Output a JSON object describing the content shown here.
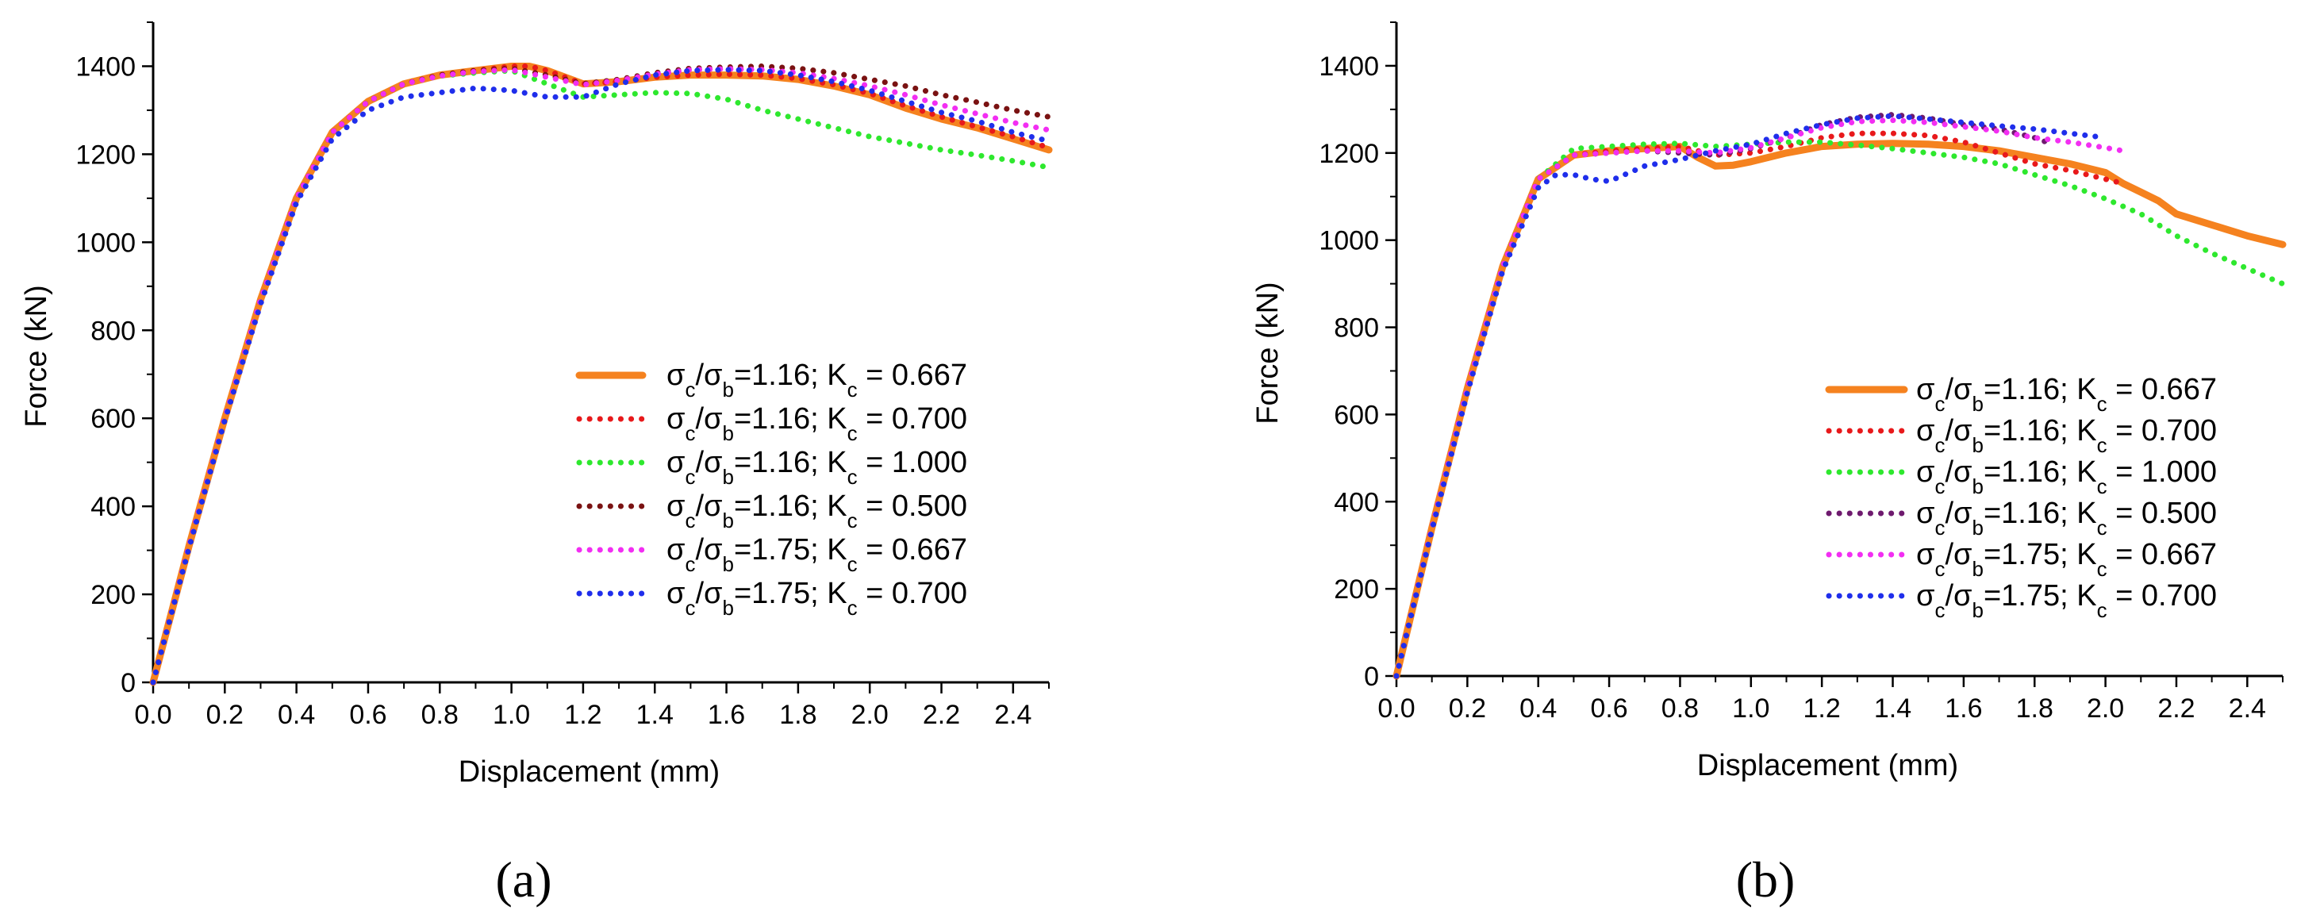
{
  "chart_data": [
    {
      "type": "line",
      "panel_label": "(a)",
      "xlabel": "Displacement (mm)",
      "ylabel": "Force (kN)",
      "xlim": [
        0,
        2.5
      ],
      "ylim": [
        0,
        1500
      ],
      "xticks": [
        "0.0",
        "0.2",
        "0.4",
        "0.6",
        "0.8",
        "1.0",
        "1.2",
        "1.4",
        "1.6",
        "1.8",
        "2.0",
        "2.2",
        "2.4"
      ],
      "yticks": [
        "0",
        "200",
        "400",
        "600",
        "800",
        "1000",
        "1200",
        "1400"
      ],
      "legend_position": "lower-right",
      "series": [
        {
          "name": "σc/σb=1.16; Kc = 0.667",
          "ratio": "1.16",
          "k": "0.667",
          "color": "#F5821F",
          "style": "solid",
          "x": [
            0,
            0.1,
            0.2,
            0.3,
            0.4,
            0.5,
            0.6,
            0.7,
            0.8,
            0.9,
            1.0,
            1.05,
            1.1,
            1.2,
            1.3,
            1.4,
            1.5,
            1.6,
            1.7,
            1.8,
            1.9,
            2.0,
            2.1,
            2.2,
            2.3,
            2.4,
            2.5
          ],
          "y": [
            0,
            310,
            600,
            870,
            1100,
            1250,
            1320,
            1360,
            1380,
            1390,
            1400,
            1400,
            1390,
            1360,
            1365,
            1375,
            1380,
            1380,
            1378,
            1370,
            1355,
            1335,
            1305,
            1280,
            1260,
            1235,
            1210
          ]
        },
        {
          "name": "σc/σb=1.16; Kc = 0.700",
          "ratio": "1.16",
          "k": "0.700",
          "color": "#E8191B",
          "style": "dotted",
          "x": [
            0,
            0.1,
            0.2,
            0.3,
            0.4,
            0.5,
            0.6,
            0.7,
            0.8,
            0.9,
            1.0,
            1.05,
            1.1,
            1.2,
            1.3,
            1.4,
            1.5,
            1.6,
            1.7,
            1.8,
            1.9,
            2.0,
            2.1,
            2.2,
            2.3,
            2.4,
            2.5
          ],
          "y": [
            0,
            310,
            600,
            870,
            1100,
            1250,
            1320,
            1360,
            1380,
            1390,
            1400,
            1400,
            1390,
            1360,
            1365,
            1375,
            1380,
            1382,
            1380,
            1372,
            1358,
            1338,
            1310,
            1285,
            1262,
            1240,
            1215
          ]
        },
        {
          "name": "σc/σb=1.16; Kc = 1.000",
          "ratio": "1.16",
          "k": "1.000",
          "color": "#2EE82E",
          "style": "dotted",
          "x": [
            0,
            0.1,
            0.2,
            0.3,
            0.4,
            0.5,
            0.6,
            0.7,
            0.8,
            0.9,
            1.0,
            1.1,
            1.2,
            1.3,
            1.4,
            1.5,
            1.6,
            1.7,
            1.8,
            1.9,
            2.0,
            2.1,
            2.2,
            2.3,
            2.4,
            2.5
          ],
          "y": [
            0,
            310,
            600,
            870,
            1100,
            1250,
            1320,
            1360,
            1378,
            1385,
            1390,
            1360,
            1330,
            1335,
            1340,
            1338,
            1325,
            1300,
            1280,
            1260,
            1240,
            1225,
            1210,
            1198,
            1185,
            1170
          ]
        },
        {
          "name": "σc/σb=1.16; Kc = 0.500",
          "ratio": "1.16",
          "k": "0.500",
          "color": "#7A1212",
          "style": "dotted",
          "x": [
            0,
            0.1,
            0.2,
            0.3,
            0.4,
            0.5,
            0.6,
            0.7,
            0.8,
            0.9,
            1.0,
            1.1,
            1.2,
            1.3,
            1.4,
            1.5,
            1.6,
            1.7,
            1.8,
            1.9,
            2.0,
            2.1,
            2.2,
            2.3,
            2.4,
            2.5
          ],
          "y": [
            0,
            310,
            600,
            870,
            1100,
            1250,
            1320,
            1360,
            1380,
            1390,
            1395,
            1380,
            1360,
            1370,
            1385,
            1395,
            1398,
            1400,
            1395,
            1385,
            1370,
            1355,
            1335,
            1318,
            1300,
            1285
          ]
        },
        {
          "name": "σc/σb=1.75; Kc = 0.667",
          "ratio": "1.75",
          "k": "0.667",
          "color": "#F22EF2",
          "style": "dotted",
          "x": [
            0,
            0.1,
            0.2,
            0.3,
            0.4,
            0.5,
            0.6,
            0.7,
            0.8,
            0.9,
            1.0,
            1.1,
            1.2,
            1.3,
            1.4,
            1.5,
            1.6,
            1.7,
            1.8,
            1.9,
            2.0,
            2.1,
            2.2,
            2.3,
            2.4,
            2.5
          ],
          "y": [
            0,
            310,
            600,
            870,
            1100,
            1250,
            1320,
            1360,
            1378,
            1388,
            1392,
            1375,
            1358,
            1368,
            1382,
            1392,
            1394,
            1392,
            1385,
            1372,
            1355,
            1335,
            1312,
            1292,
            1272,
            1255
          ]
        },
        {
          "name": "σc/σb=1.75; Kc = 0.700",
          "ratio": "1.75",
          "k": "0.700",
          "color": "#1F2EEB",
          "style": "dotted",
          "x": [
            0,
            0.1,
            0.2,
            0.3,
            0.4,
            0.5,
            0.6,
            0.7,
            0.8,
            0.9,
            1.0,
            1.1,
            1.2,
            1.3,
            1.4,
            1.5,
            1.6,
            1.7,
            1.8,
            1.9,
            2.0,
            2.1,
            2.2,
            2.3,
            2.4,
            2.5
          ],
          "y": [
            0,
            305,
            595,
            860,
            1090,
            1235,
            1300,
            1330,
            1340,
            1350,
            1345,
            1330,
            1330,
            1360,
            1380,
            1390,
            1392,
            1390,
            1380,
            1365,
            1345,
            1320,
            1295,
            1275,
            1250,
            1230
          ]
        }
      ]
    },
    {
      "type": "line",
      "panel_label": "(b)",
      "xlabel": "Displacement (mm)",
      "ylabel": "Force (kN)",
      "xlim": [
        0,
        2.5
      ],
      "ylim": [
        0,
        1500
      ],
      "xticks": [
        "0.0",
        "0.2",
        "0.4",
        "0.6",
        "0.8",
        "1.0",
        "1.2",
        "1.4",
        "1.6",
        "1.8",
        "2.0",
        "2.2",
        "2.4"
      ],
      "yticks": [
        "0",
        "200",
        "400",
        "600",
        "800",
        "1000",
        "1200",
        "1400"
      ],
      "legend_position": "lower-right",
      "series": [
        {
          "name": "σc/σb=1.16; Kc = 0.667",
          "ratio": "1.16",
          "k": "0.667",
          "color": "#F5821F",
          "style": "solid",
          "x": [
            0,
            0.1,
            0.2,
            0.3,
            0.4,
            0.5,
            0.6,
            0.7,
            0.8,
            0.85,
            0.9,
            0.95,
            1.0,
            1.1,
            1.2,
            1.3,
            1.4,
            1.5,
            1.6,
            1.7,
            1.8,
            1.9,
            2.0,
            2.05,
            2.1,
            2.15,
            2.2,
            2.3,
            2.4,
            2.5
          ],
          "y": [
            0,
            340,
            660,
            940,
            1140,
            1195,
            1205,
            1210,
            1215,
            1190,
            1170,
            1172,
            1180,
            1200,
            1215,
            1220,
            1222,
            1220,
            1215,
            1205,
            1190,
            1175,
            1155,
            1130,
            1110,
            1090,
            1060,
            1035,
            1010,
            990
          ]
        },
        {
          "name": "σc/σb=1.16; Kc = 0.700",
          "ratio": "1.16",
          "k": "0.700",
          "color": "#E8191B",
          "style": "dotted",
          "x": [
            0,
            0.1,
            0.2,
            0.3,
            0.4,
            0.5,
            0.6,
            0.7,
            0.8,
            0.9,
            1.0,
            1.1,
            1.2,
            1.3,
            1.4,
            1.5,
            1.6,
            1.7,
            1.8,
            1.9,
            2.0,
            2.05
          ],
          "y": [
            0,
            340,
            660,
            940,
            1140,
            1195,
            1205,
            1210,
            1215,
            1195,
            1200,
            1215,
            1235,
            1245,
            1245,
            1240,
            1225,
            1200,
            1175,
            1160,
            1140,
            1130
          ]
        },
        {
          "name": "σc/σb=1.16; Kc = 1.000",
          "ratio": "1.16",
          "k": "1.000",
          "color": "#2EE82E",
          "style": "dotted",
          "x": [
            0,
            0.1,
            0.2,
            0.3,
            0.4,
            0.5,
            0.6,
            0.7,
            0.8,
            0.9,
            1.0,
            1.1,
            1.2,
            1.3,
            1.4,
            1.5,
            1.6,
            1.7,
            1.8,
            1.9,
            2.0,
            2.1,
            2.2,
            2.3,
            2.4,
            2.5
          ],
          "y": [
            0,
            340,
            660,
            940,
            1140,
            1210,
            1215,
            1220,
            1222,
            1215,
            1220,
            1225,
            1225,
            1218,
            1210,
            1200,
            1190,
            1175,
            1150,
            1125,
            1095,
            1060,
            1010,
            970,
            935,
            900
          ]
        },
        {
          "name": "σc/σb=1.16; Kc = 0.500",
          "ratio": "1.16",
          "k": "0.500",
          "color": "#6E1A6E",
          "style": "dotted",
          "x": [
            0,
            0.1,
            0.2,
            0.3,
            0.4,
            0.5,
            0.6,
            0.7,
            0.8,
            0.9,
            1.0,
            1.1,
            1.2,
            1.3,
            1.4,
            1.5,
            1.6,
            1.7,
            1.8,
            1.85
          ],
          "y": [
            0,
            340,
            660,
            940,
            1140,
            1195,
            1200,
            1205,
            1200,
            1195,
            1210,
            1235,
            1265,
            1282,
            1288,
            1280,
            1265,
            1255,
            1235,
            1220
          ]
        },
        {
          "name": "σc/σb=1.75; Kc = 0.667",
          "ratio": "1.75",
          "k": "0.667",
          "color": "#F22EF2",
          "style": "dotted",
          "x": [
            0,
            0.1,
            0.2,
            0.3,
            0.4,
            0.5,
            0.6,
            0.7,
            0.8,
            0.9,
            1.0,
            1.1,
            1.2,
            1.3,
            1.4,
            1.5,
            1.6,
            1.7,
            1.8,
            1.9,
            2.0,
            2.05
          ],
          "y": [
            0,
            340,
            660,
            940,
            1140,
            1195,
            1200,
            1205,
            1205,
            1200,
            1212,
            1235,
            1258,
            1272,
            1275,
            1270,
            1260,
            1250,
            1235,
            1225,
            1212,
            1205
          ]
        },
        {
          "name": "σc/σb=1.75; Kc = 0.700",
          "ratio": "1.75",
          "k": "0.700",
          "color": "#1F2EEB",
          "style": "dotted",
          "x": [
            0,
            0.1,
            0.2,
            0.3,
            0.4,
            0.45,
            0.5,
            0.55,
            0.6,
            0.7,
            0.8,
            0.9,
            1.0,
            1.1,
            1.2,
            1.3,
            1.4,
            1.5,
            1.6,
            1.7,
            1.8,
            1.9,
            2.0
          ],
          "y": [
            0,
            335,
            650,
            930,
            1120,
            1150,
            1150,
            1140,
            1135,
            1170,
            1185,
            1205,
            1220,
            1245,
            1265,
            1280,
            1285,
            1278,
            1270,
            1262,
            1255,
            1245,
            1235
          ]
        }
      ]
    }
  ]
}
